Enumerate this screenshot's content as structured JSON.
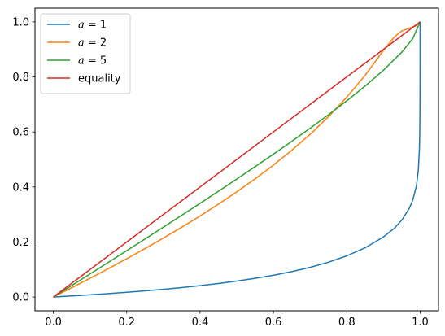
{
  "chart_data": {
    "type": "line",
    "title": "",
    "xlabel": "",
    "ylabel": "",
    "xlim": [
      -0.05,
      1.05
    ],
    "ylim": [
      -0.05,
      1.05
    ],
    "x_ticks": [
      0.0,
      0.2,
      0.4,
      0.6,
      0.8,
      1.0
    ],
    "x_tick_labels": [
      "0.0",
      "0.2",
      "0.4",
      "0.6",
      "0.8",
      "1.0"
    ],
    "y_ticks": [
      0.0,
      0.2,
      0.4,
      0.6,
      0.8,
      1.0
    ],
    "y_tick_labels": [
      "0.0",
      "0.2",
      "0.4",
      "0.6",
      "0.8",
      "1.0"
    ],
    "grid": false,
    "legend_position": "top-left",
    "series": [
      {
        "name": "a = 1",
        "legend_var": "a",
        "legend_eq": " = 1",
        "color": "#1f77b4",
        "points": [
          [
            0.0,
            0.0
          ],
          [
            0.05,
            0.0039
          ],
          [
            0.1,
            0.0079
          ],
          [
            0.15,
            0.0123
          ],
          [
            0.2,
            0.0171
          ],
          [
            0.25,
            0.0224
          ],
          [
            0.3,
            0.0281
          ],
          [
            0.35,
            0.0344
          ],
          [
            0.4,
            0.0414
          ],
          [
            0.45,
            0.0492
          ],
          [
            0.5,
            0.0579
          ],
          [
            0.55,
            0.0678
          ],
          [
            0.6,
            0.0791
          ],
          [
            0.65,
            0.0923
          ],
          [
            0.7,
            0.1078
          ],
          [
            0.75,
            0.1264
          ],
          [
            0.8,
            0.1496
          ],
          [
            0.85,
            0.1789
          ],
          [
            0.9,
            0.2183
          ],
          [
            0.93,
            0.2503
          ],
          [
            0.95,
            0.2797
          ],
          [
            0.97,
            0.3211
          ],
          [
            0.98,
            0.3526
          ],
          [
            0.99,
            0.4049
          ],
          [
            0.995,
            0.46
          ],
          [
            0.998,
            0.54
          ],
          [
            0.999,
            0.6
          ],
          [
            0.9997,
            0.72
          ],
          [
            0.99995,
            0.86
          ],
          [
            1.0,
            1.0
          ]
        ]
      },
      {
        "name": "a = 2",
        "legend_var": "a",
        "legend_eq": " = 2",
        "color": "#ff7f0e",
        "points": [
          [
            0.0,
            0.0
          ],
          [
            0.05,
            0.0338
          ],
          [
            0.1,
            0.0681
          ],
          [
            0.15,
            0.1032
          ],
          [
            0.2,
            0.1392
          ],
          [
            0.25,
            0.1761
          ],
          [
            0.3,
            0.2142
          ],
          [
            0.35,
            0.2536
          ],
          [
            0.4,
            0.2946
          ],
          [
            0.45,
            0.3373
          ],
          [
            0.5,
            0.382
          ],
          [
            0.55,
            0.4293
          ],
          [
            0.6,
            0.4795
          ],
          [
            0.65,
            0.5333
          ],
          [
            0.7,
            0.5911
          ],
          [
            0.75,
            0.6554
          ],
          [
            0.8,
            0.7264
          ],
          [
            0.85,
            0.8056
          ],
          [
            0.9,
            0.8963
          ],
          [
            0.93,
            0.9457
          ],
          [
            0.95,
            0.9671
          ],
          [
            0.97,
            0.9771
          ],
          [
            0.98,
            0.9821
          ],
          [
            0.99,
            0.9871
          ],
          [
            1.0,
            1.0
          ]
        ]
      },
      {
        "name": "a = 5",
        "legend_var": "a",
        "legend_eq": " = 5",
        "color": "#2ca02c",
        "points": [
          [
            0.0,
            0.0
          ],
          [
            0.05,
            0.0418
          ],
          [
            0.1,
            0.0838
          ],
          [
            0.15,
            0.1259
          ],
          [
            0.2,
            0.1683
          ],
          [
            0.25,
            0.2109
          ],
          [
            0.3,
            0.2538
          ],
          [
            0.35,
            0.2969
          ],
          [
            0.4,
            0.3404
          ],
          [
            0.45,
            0.3843
          ],
          [
            0.5,
            0.4287
          ],
          [
            0.55,
            0.4737
          ],
          [
            0.6,
            0.5193
          ],
          [
            0.65,
            0.5658
          ],
          [
            0.7,
            0.6134
          ],
          [
            0.75,
            0.6624
          ],
          [
            0.8,
            0.7132
          ],
          [
            0.85,
            0.7666
          ],
          [
            0.9,
            0.8243
          ],
          [
            0.95,
            0.8901
          ],
          [
            0.98,
            0.9394
          ],
          [
            1.0,
            1.0
          ]
        ]
      },
      {
        "name": "equality",
        "legend_var": "",
        "legend_eq": "equality",
        "color": "#d62728",
        "points": [
          [
            0.0,
            0.0
          ],
          [
            1.0,
            1.0
          ]
        ]
      }
    ]
  }
}
